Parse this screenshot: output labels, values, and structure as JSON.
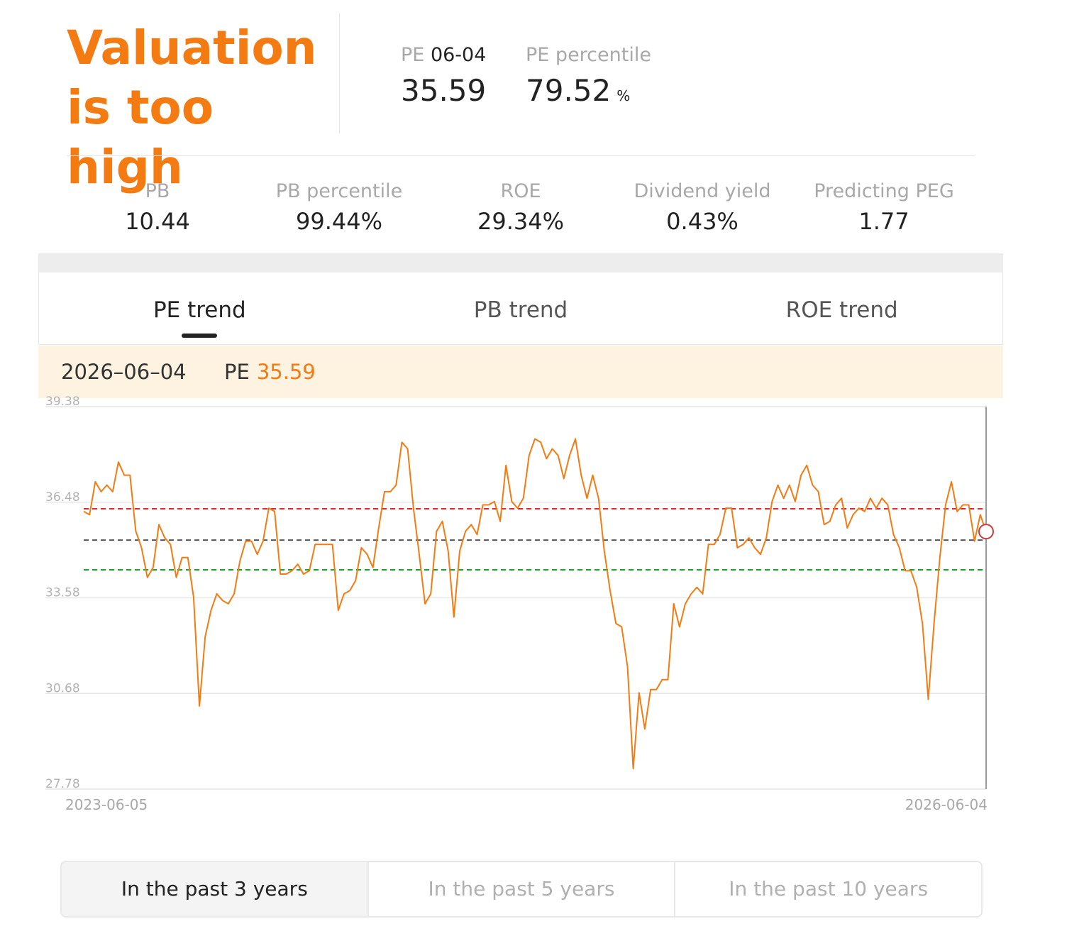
{
  "verdict": "Valuation is too high",
  "pe_metric": {
    "label": "PE",
    "date": "06-04",
    "value": "35.59"
  },
  "pe_percentile": {
    "label": "PE percentile",
    "value": "79.52",
    "unit": "%"
  },
  "stats": [
    {
      "label": "PB",
      "value": "10.44"
    },
    {
      "label": "PB percentile",
      "value": "99.44%"
    },
    {
      "label": "ROE",
      "value": "29.34%"
    },
    {
      "label": "Dividend yield",
      "value": "0.43%"
    },
    {
      "label": "Predicting PEG",
      "value": "1.77"
    }
  ],
  "tabs": [
    {
      "label": "PE trend",
      "active": true
    },
    {
      "label": "PB trend",
      "active": false
    },
    {
      "label": "ROE trend",
      "active": false
    }
  ],
  "infobar": {
    "date": "2026–06–04",
    "label": "PE",
    "value": "35.59"
  },
  "ranges": [
    {
      "label": "In the past 3 years",
      "active": true
    },
    {
      "label": "In the past 5 years",
      "active": false
    },
    {
      "label": "In the past 10 years",
      "active": false
    }
  ],
  "colors": {
    "accent": "#f47b12",
    "high_line": "#e8262b",
    "median_line": "#555555",
    "low_line": "#1f9a2e"
  },
  "chart_data": {
    "type": "line",
    "x_start_label": "2023-06-05",
    "x_end_label": "2026-06-04",
    "ylim": [
      27.78,
      39.38
    ],
    "y_ticks": [
      "39.38",
      "36.48",
      "33.58",
      "30.68",
      "27.78"
    ],
    "reference_lines": {
      "high": 36.28,
      "median": 35.33,
      "low": 34.43
    },
    "grid": true,
    "series": [
      {
        "values": [
          36.2,
          36.1,
          37.1,
          36.8,
          37.0,
          36.8,
          37.7,
          37.3,
          37.3,
          35.6,
          35.1,
          34.2,
          34.5,
          35.8,
          35.4,
          35.2,
          34.2,
          34.8,
          34.8,
          33.6,
          30.3,
          32.4,
          33.2,
          33.7,
          33.5,
          33.4,
          33.7,
          34.7,
          35.3,
          35.3,
          34.9,
          35.3,
          36.3,
          36.2,
          34.3,
          34.3,
          34.4,
          34.6,
          34.3,
          34.4,
          35.2,
          35.2,
          35.2,
          35.2,
          33.2,
          33.7,
          33.8,
          34.1,
          35.1,
          34.9,
          34.5,
          35.7,
          36.8,
          36.8,
          37.0,
          38.3,
          38.1,
          36.3,
          34.9,
          33.4,
          33.7,
          35.6,
          35.9,
          35.0,
          33.0,
          35.0,
          35.6,
          35.8,
          35.5,
          36.4,
          36.4,
          36.5,
          35.9,
          37.6,
          36.5,
          36.3,
          36.6,
          37.9,
          38.4,
          38.3,
          37.8,
          38.1,
          37.9,
          37.2,
          37.9,
          38.4,
          37.3,
          36.6,
          37.3,
          36.6,
          35.0,
          33.8,
          32.8,
          32.7,
          31.5,
          28.4,
          30.7,
          29.6,
          30.8,
          30.8,
          31.1,
          31.1,
          33.4,
          32.7,
          33.4,
          33.7,
          33.9,
          33.7,
          35.2,
          35.2,
          35.5,
          36.3,
          36.3,
          35.1,
          35.2,
          35.4,
          35.1,
          34.9,
          35.4,
          36.5,
          37.0,
          36.6,
          37.0,
          36.5,
          37.3,
          37.6,
          37.0,
          36.8,
          35.8,
          35.9,
          36.4,
          36.6,
          35.7,
          36.1,
          36.3,
          36.2,
          36.6,
          36.3,
          36.6,
          36.4,
          35.5,
          35.1,
          34.4,
          34.4,
          33.9,
          32.8,
          30.5,
          32.8,
          34.8,
          36.4,
          37.1,
          36.2,
          36.4,
          36.4,
          35.3,
          36.1,
          35.59
        ]
      }
    ]
  }
}
